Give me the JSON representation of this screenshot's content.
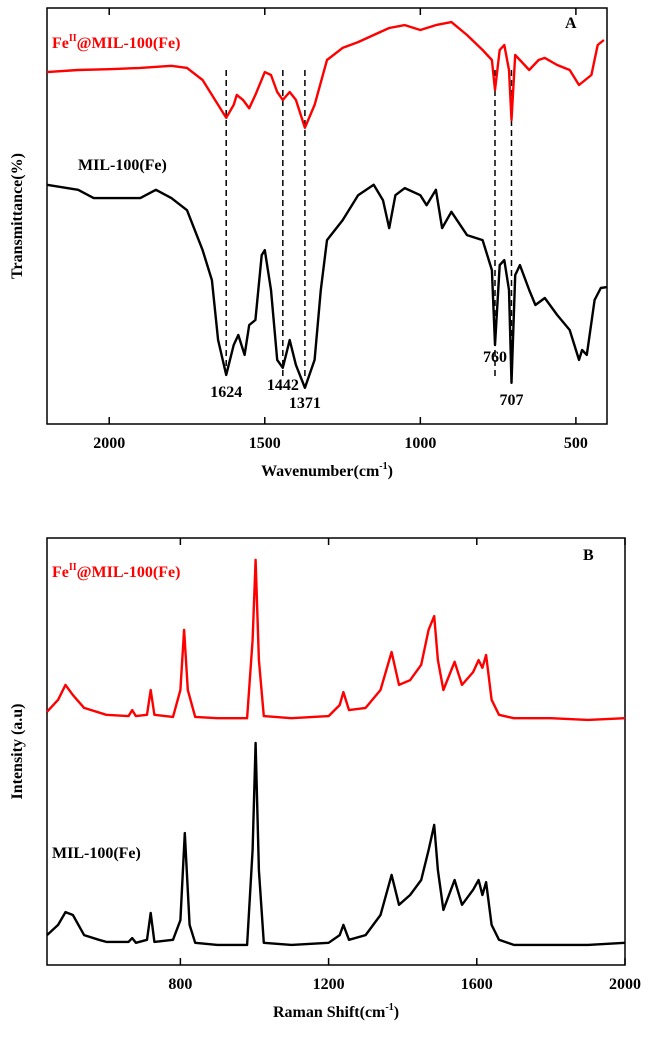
{
  "chart_data": [
    {
      "type": "line",
      "panel": "A",
      "x_label": [
        "Wavenumber(cm",
        "-1",
        ")"
      ],
      "y_label": "Transmittance(%)",
      "xlim": [
        2200,
        400
      ],
      "xticks": [
        2000,
        1500,
        1000,
        500
      ],
      "ylim": [
        0,
        100
      ],
      "peaks": [
        1624,
        1442,
        1371,
        760,
        707
      ],
      "series": [
        {
          "name": [
            "Fe",
            "II",
            "@MIL-100(Fe)"
          ],
          "color": "#ff0000",
          "x": [
            2200,
            2100,
            2000,
            1900,
            1800,
            1750,
            1700,
            1660,
            1624,
            1600,
            1590,
            1570,
            1550,
            1530,
            1500,
            1480,
            1460,
            1442,
            1420,
            1400,
            1371,
            1340,
            1300,
            1250,
            1200,
            1150,
            1100,
            1050,
            1000,
            950,
            900,
            850,
            800,
            770,
            760,
            745,
            730,
            715,
            707,
            695,
            680,
            650,
            620,
            600,
            560,
            520,
            490,
            470,
            450,
            430,
            410
          ],
          "values": [
            84.6,
            85.1,
            85.3,
            85.6,
            86.1,
            85.6,
            82.7,
            77.9,
            73.6,
            76.7,
            79.1,
            77.9,
            75.9,
            79.1,
            84.6,
            83.9,
            79.8,
            77.9,
            79.8,
            77.9,
            71.2,
            76.7,
            87.5,
            90.4,
            91.8,
            93.5,
            95.2,
            95.9,
            94.7,
            95.9,
            96.6,
            93.5,
            89.9,
            87.5,
            80.3,
            89.9,
            91.1,
            85.1,
            73.1,
            88.7,
            87.5,
            85.1,
            87.5,
            88.0,
            86.3,
            85.1,
            81.5,
            82.7,
            83.9,
            91.1,
            92.3
          ]
        },
        {
          "name": "MIL-100(Fe)",
          "color": "#000000",
          "x": [
            2200,
            2100,
            2050,
            2000,
            1900,
            1850,
            1800,
            1750,
            1700,
            1670,
            1650,
            1624,
            1600,
            1585,
            1565,
            1550,
            1530,
            1510,
            1500,
            1480,
            1460,
            1442,
            1420,
            1400,
            1371,
            1340,
            1320,
            1300,
            1250,
            1200,
            1150,
            1120,
            1100,
            1080,
            1050,
            1000,
            980,
            950,
            930,
            900,
            850,
            800,
            770,
            760,
            745,
            730,
            715,
            707,
            695,
            680,
            650,
            630,
            600,
            560,
            520,
            490,
            480,
            465,
            440,
            420,
            400
          ],
          "values": [
            57.5,
            56.3,
            54.3,
            54.3,
            54.3,
            56.3,
            54.3,
            51.4,
            41.8,
            34.6,
            20.2,
            11.8,
            19.0,
            21.4,
            16.6,
            23.8,
            25.0,
            40.6,
            41.8,
            32.2,
            15.4,
            13.5,
            20.2,
            14.2,
            8.7,
            15.4,
            32.2,
            44.2,
            49.0,
            55.0,
            57.5,
            53.8,
            47.1,
            55.0,
            56.7,
            55.0,
            52.6,
            56.3,
            47.1,
            51.0,
            45.4,
            44.2,
            37.0,
            19.0,
            38.2,
            39.4,
            32.2,
            9.9,
            35.8,
            38.2,
            32.2,
            28.6,
            30.3,
            26.2,
            22.6,
            15.4,
            17.8,
            16.6,
            29.8,
            32.7,
            32.9
          ]
        }
      ]
    },
    {
      "type": "line",
      "panel": "B",
      "x_label": [
        "Raman Shift(cm",
        "-1",
        ")"
      ],
      "y_label": "Intensity (a.u)",
      "xlim": [
        440,
        2000
      ],
      "xticks": [
        800,
        1200,
        1600,
        2000
      ],
      "ylim": [
        0,
        100
      ],
      "series": [
        {
          "name": [
            "Fe",
            "II",
            "@MIL-100(Fe)"
          ],
          "color": "#ff0000",
          "x": [
            440,
            470,
            490,
            510,
            540,
            600,
            660,
            670,
            680,
            710,
            720,
            730,
            780,
            800,
            810,
            820,
            840,
            900,
            980,
            995,
            1003,
            1012,
            1025,
            1100,
            1200,
            1230,
            1240,
            1255,
            1300,
            1340,
            1370,
            1390,
            1420,
            1450,
            1470,
            1485,
            1495,
            1510,
            1540,
            1560,
            1590,
            1605,
            1615,
            1625,
            1640,
            1660,
            1700,
            1800,
            1900,
            2000
          ],
          "values": [
            59.3,
            62.1,
            65.6,
            63.2,
            60.2,
            58.6,
            58.3,
            59.7,
            58.3,
            58.6,
            64.4,
            58.6,
            58.1,
            64.4,
            78.5,
            64.4,
            58.1,
            57.8,
            57.8,
            76.1,
            94.9,
            71.4,
            58.3,
            57.8,
            58.3,
            60.9,
            63.9,
            59.7,
            60.2,
            64.4,
            73.3,
            65.6,
            66.7,
            70.3,
            78.5,
            81.7,
            71.4,
            64.4,
            71.0,
            65.6,
            68.6,
            71.4,
            69.6,
            72.6,
            62.1,
            58.6,
            57.8,
            57.8,
            57.4,
            57.8
          ]
        },
        {
          "name": "MIL-100(Fe)",
          "color": "#000000",
          "x": [
            440,
            470,
            490,
            510,
            540,
            580,
            600,
            660,
            670,
            680,
            710,
            720,
            730,
            780,
            800,
            812,
            825,
            840,
            900,
            980,
            995,
            1003,
            1012,
            1025,
            1100,
            1200,
            1230,
            1240,
            1255,
            1300,
            1340,
            1370,
            1390,
            1420,
            1450,
            1470,
            1485,
            1495,
            1510,
            1540,
            1560,
            1590,
            1605,
            1615,
            1625,
            1640,
            1660,
            1700,
            1800,
            1900,
            2000
          ],
          "values": [
            7.0,
            9.4,
            12.4,
            11.7,
            7.0,
            5.9,
            5.4,
            5.4,
            6.3,
            5.2,
            5.9,
            12.2,
            5.4,
            5.9,
            10.5,
            30.9,
            9.4,
            5.2,
            4.7,
            4.7,
            26.9,
            52.0,
            22.2,
            5.2,
            4.7,
            5.2,
            7.0,
            9.4,
            5.9,
            7.0,
            11.7,
            21.1,
            14.1,
            16.4,
            19.9,
            26.9,
            32.8,
            22.2,
            12.9,
            19.9,
            14.1,
            17.6,
            19.9,
            16.4,
            19.4,
            9.4,
            5.9,
            4.7,
            4.7,
            4.7,
            5.2
          ]
        }
      ]
    }
  ]
}
